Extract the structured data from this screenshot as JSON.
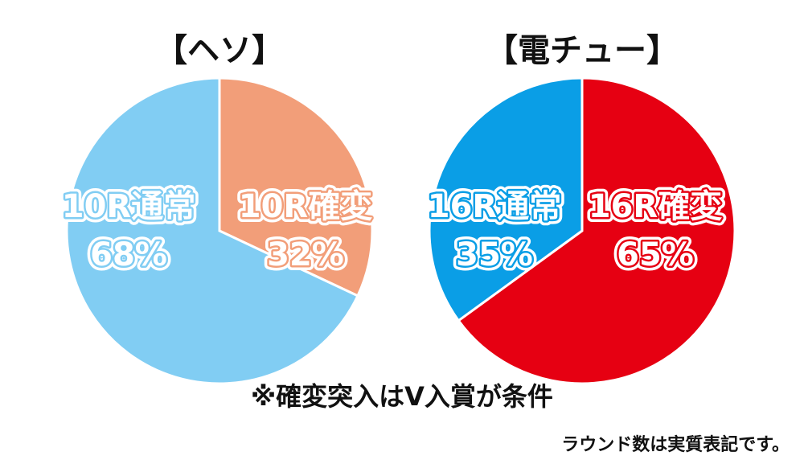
{
  "chart_data": [
    {
      "type": "pie",
      "title": "【ヘソ】",
      "slices": [
        {
          "label": "10R確変",
          "value": 32,
          "display": "32%",
          "color": "#f29e79",
          "text_color": "#ffffff",
          "outline_color": "#f29e79"
        },
        {
          "label": "10R通常",
          "value": 68,
          "display": "68%",
          "color": "#81cdf3",
          "text_color": "#ffffff",
          "outline_color": "#81cdf3"
        }
      ]
    },
    {
      "type": "pie",
      "title": "【電チュー】",
      "slices": [
        {
          "label": "16R確変",
          "value": 65,
          "display": "65%",
          "color": "#e60012",
          "text_color": "#ffffff",
          "outline_color": "#e60012"
        },
        {
          "label": "16R通常",
          "value": 35,
          "display": "35%",
          "color": "#0a9ee6",
          "text_color": "#ffffff",
          "outline_color": "#0a9ee6"
        }
      ]
    }
  ],
  "footnote": "※確変突入はV入賞が条件",
  "note": "ラウンド数は実質表記です。"
}
